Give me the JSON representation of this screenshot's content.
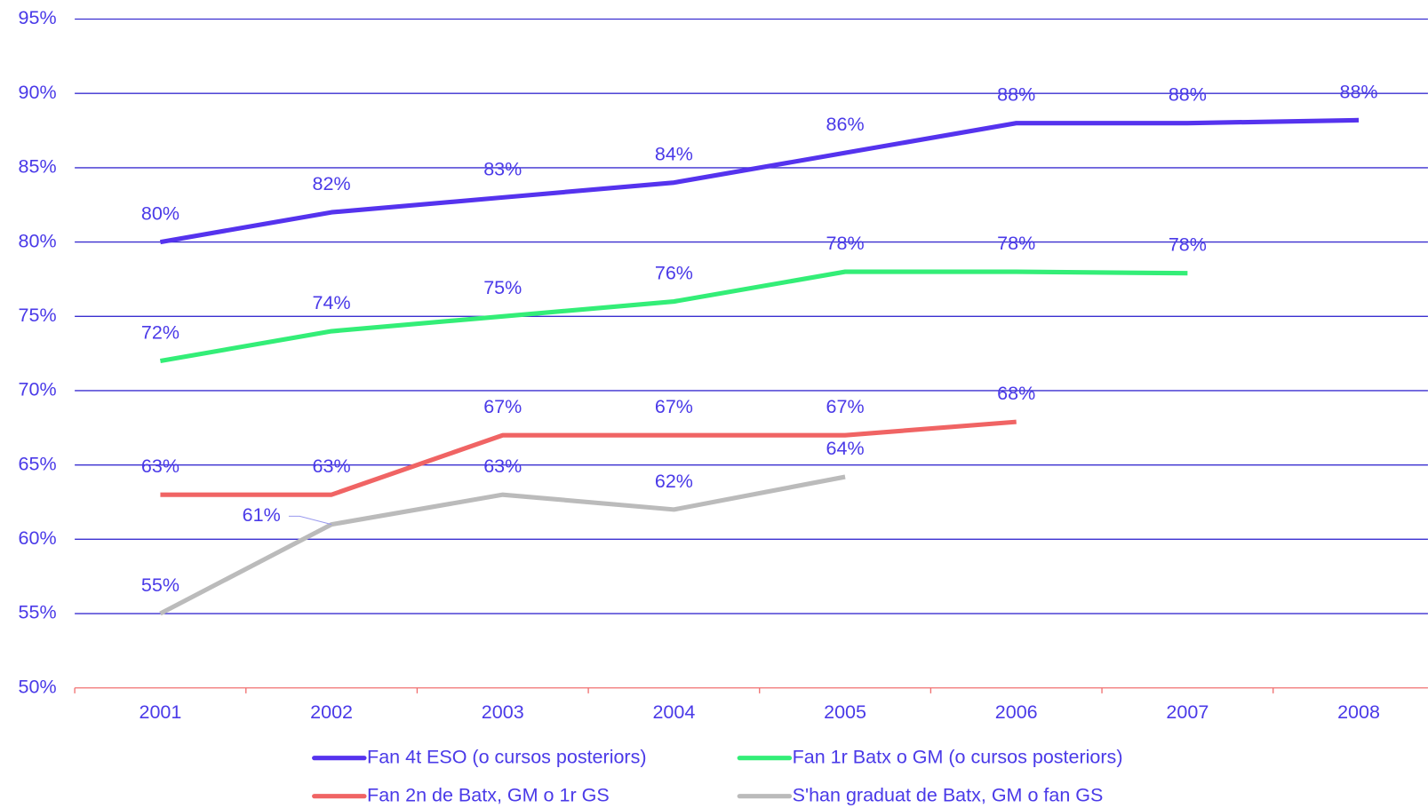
{
  "chart_data": {
    "type": "line",
    "categories": [
      "2001",
      "2002",
      "2003",
      "2004",
      "2005",
      "2006",
      "2007",
      "2008"
    ],
    "series": [
      {
        "name": "Fan 4t ESO (o cursos posteriors)",
        "color": "#5533ee",
        "values": [
          80,
          82,
          83,
          84,
          86,
          88,
          88,
          88.2
        ],
        "value_labels": [
          "80%",
          "82%",
          "83%",
          "84%",
          "86%",
          "88%",
          "88%",
          "88%"
        ]
      },
      {
        "name": "Fan 1r Batx o GM (o cursos posteriors)",
        "color": "#33ee77",
        "values": [
          72,
          74,
          75,
          76,
          78,
          78,
          77.9,
          null
        ],
        "value_labels": [
          "72%",
          "74%",
          "75%",
          "76%",
          "78%",
          "78%",
          "78%",
          null
        ]
      },
      {
        "name": "Fan 2n de Batx, GM o 1r GS",
        "color": "#f06464",
        "values": [
          63,
          63,
          67,
          67,
          67,
          67.9,
          null,
          null
        ],
        "value_labels": [
          "63%",
          "63%",
          "67%",
          "67%",
          "67%",
          "68%",
          null,
          null
        ]
      },
      {
        "name": "S'han graduat de Batx, GM o fan GS",
        "color": "#bbbbbb",
        "values": [
          55,
          61,
          63,
          62,
          64.2,
          null,
          null,
          null
        ],
        "value_labels": [
          "55%",
          "61%",
          "63%",
          "62%",
          "64%",
          null,
          null,
          null
        ]
      }
    ],
    "ylim": [
      50,
      95
    ],
    "yticks": [
      {
        "value": 50,
        "label": "50%"
      },
      {
        "value": 55,
        "label": "55%"
      },
      {
        "value": 60,
        "label": "60%"
      },
      {
        "value": 65,
        "label": "65%"
      },
      {
        "value": 70,
        "label": "70%"
      },
      {
        "value": 75,
        "label": "75%"
      },
      {
        "value": 80,
        "label": "80%"
      },
      {
        "value": 85,
        "label": "85%"
      },
      {
        "value": 90,
        "label": "90%"
      },
      {
        "value": 95,
        "label": "95%"
      }
    ],
    "grid": true,
    "legend": "bottom"
  }
}
